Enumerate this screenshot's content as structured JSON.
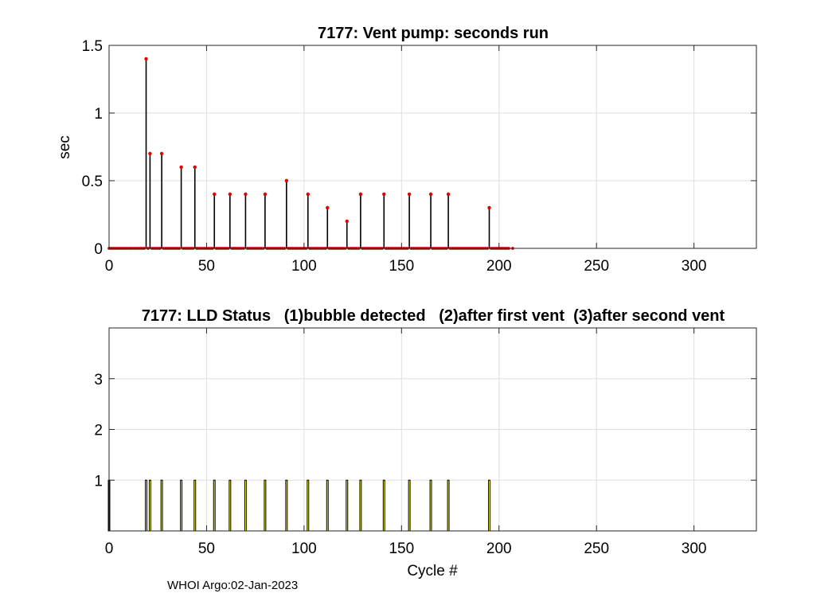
{
  "footer": "WHOI Argo:02-Jan-2023",
  "colors": {
    "axis": "#262626",
    "grid": "#dfdfdf",
    "stem": "#000000",
    "marker": "#e00000",
    "status_bar": "#ffff00"
  },
  "chart_data": [
    {
      "type": "stem",
      "title": "7177: Vent pump: seconds run",
      "xlabel": "",
      "ylabel": "sec",
      "xlim": [
        0,
        332
      ],
      "ylim": [
        0,
        1.5
      ],
      "xticks": [
        0,
        50,
        100,
        150,
        200,
        250,
        300
      ],
      "yticks": [
        0,
        0.5,
        1,
        1.5
      ],
      "ytick_labels": [
        "0",
        "0.5",
        "1",
        "1.5"
      ],
      "grid": true,
      "zero_cycles_range": [
        0,
        205
      ],
      "zero_extra": [
        207
      ],
      "points": [
        [
          19,
          1.4
        ],
        [
          21,
          0.7
        ],
        [
          27,
          0.7
        ],
        [
          37,
          0.6
        ],
        [
          44,
          0.6
        ],
        [
          54,
          0.4
        ],
        [
          62,
          0.4
        ],
        [
          70,
          0.4
        ],
        [
          80,
          0.4
        ],
        [
          91,
          0.5
        ],
        [
          102,
          0.4
        ],
        [
          112,
          0.3
        ],
        [
          122,
          0.2
        ],
        [
          129,
          0.4
        ],
        [
          141,
          0.4
        ],
        [
          154,
          0.4
        ],
        [
          165,
          0.4
        ],
        [
          174,
          0.4
        ],
        [
          195,
          0.3
        ]
      ]
    },
    {
      "type": "bar",
      "title": "7177: LLD Status   (1)bubble detected   (2)after first vent  (3)after second vent",
      "xlabel": "Cycle #",
      "ylabel": "",
      "xlim": [
        0,
        332
      ],
      "ylim": [
        0,
        4
      ],
      "xticks": [
        0,
        50,
        100,
        150,
        200,
        250,
        300
      ],
      "yticks": [
        1,
        2,
        3
      ],
      "grid": true,
      "bar_width": 0.8,
      "cycles": [
        0,
        19,
        21,
        27,
        37,
        44,
        54,
        62,
        70,
        80,
        91,
        102,
        112,
        122,
        129,
        141,
        154,
        165,
        174,
        195
      ],
      "values": [
        1,
        1,
        1,
        1,
        1,
        1,
        1,
        1,
        1,
        1,
        1,
        1,
        1,
        1,
        1,
        1,
        1,
        1,
        1,
        1
      ]
    }
  ]
}
